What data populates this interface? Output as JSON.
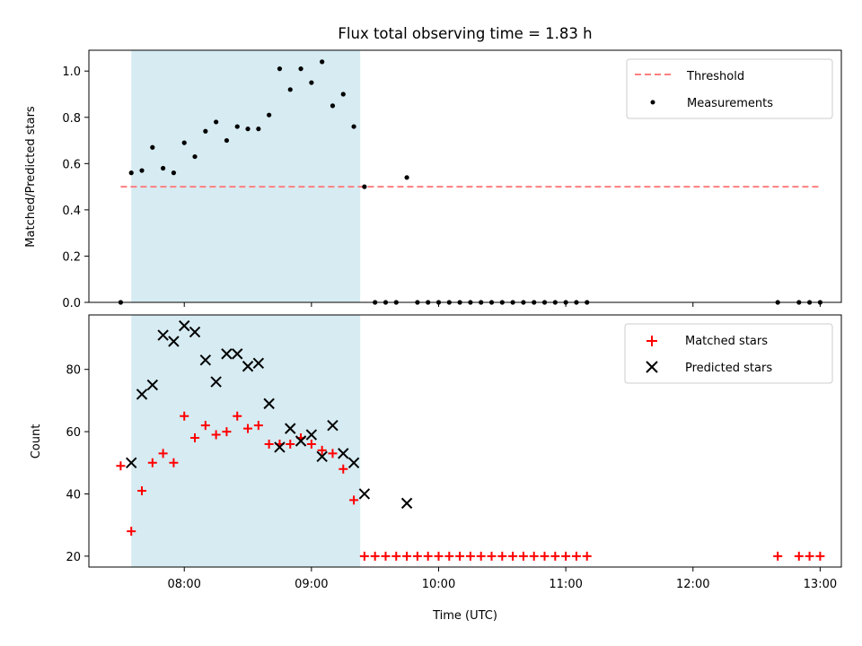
{
  "chart_data": {
    "title": "Flux total observing time = 1.83 h",
    "shaded_interval": {
      "start": "07:35",
      "end": "09:23",
      "color": "#add8e6"
    },
    "xlabel": "Time (UTC)",
    "x_ticks": [
      "08:00",
      "09:00",
      "10:00",
      "11:00",
      "12:00",
      "13:00"
    ],
    "x_range": [
      "07:15",
      "13:10"
    ],
    "panels": [
      {
        "type": "scatter",
        "ylabel": "Matched/Predicted stars",
        "ylim": [
          0,
          1.09
        ],
        "y_ticks": [
          "0.0",
          "0.2",
          "0.4",
          "0.6",
          "0.8",
          "1.0"
        ],
        "legend_position": "upper right",
        "series": [
          {
            "name": "Threshold",
            "kind": "dashed-line",
            "color": "#ff7f7f",
            "points": [
              {
                "t": "07:30",
                "y": 0.5
              },
              {
                "t": "13:00",
                "y": 0.5
              }
            ]
          },
          {
            "name": "Measurements",
            "kind": "dots",
            "color": "#000000",
            "points": [
              {
                "t": "07:30",
                "y": 0.0
              },
              {
                "t": "07:35",
                "y": 0.56
              },
              {
                "t": "07:40",
                "y": 0.57
              },
              {
                "t": "07:45",
                "y": 0.67
              },
              {
                "t": "07:50",
                "y": 0.58
              },
              {
                "t": "07:55",
                "y": 0.56
              },
              {
                "t": "08:00",
                "y": 0.69
              },
              {
                "t": "08:05",
                "y": 0.63
              },
              {
                "t": "08:10",
                "y": 0.74
              },
              {
                "t": "08:15",
                "y": 0.78
              },
              {
                "t": "08:20",
                "y": 0.7
              },
              {
                "t": "08:25",
                "y": 0.76
              },
              {
                "t": "08:30",
                "y": 0.75
              },
              {
                "t": "08:35",
                "y": 0.75
              },
              {
                "t": "08:40",
                "y": 0.81
              },
              {
                "t": "08:45",
                "y": 1.01
              },
              {
                "t": "08:50",
                "y": 0.92
              },
              {
                "t": "08:55",
                "y": 1.01
              },
              {
                "t": "09:00",
                "y": 0.95
              },
              {
                "t": "09:05",
                "y": 1.04
              },
              {
                "t": "09:10",
                "y": 0.85
              },
              {
                "t": "09:15",
                "y": 0.9
              },
              {
                "t": "09:20",
                "y": 0.76
              },
              {
                "t": "09:25",
                "y": 0.5
              },
              {
                "t": "09:30",
                "y": 0.0
              },
              {
                "t": "09:35",
                "y": 0.0
              },
              {
                "t": "09:40",
                "y": 0.0
              },
              {
                "t": "09:45",
                "y": 0.54
              },
              {
                "t": "09:50",
                "y": 0.0
              },
              {
                "t": "09:55",
                "y": 0.0
              },
              {
                "t": "10:00",
                "y": 0.0
              },
              {
                "t": "10:05",
                "y": 0.0
              },
              {
                "t": "10:10",
                "y": 0.0
              },
              {
                "t": "10:15",
                "y": 0.0
              },
              {
                "t": "10:20",
                "y": 0.0
              },
              {
                "t": "10:25",
                "y": 0.0
              },
              {
                "t": "10:30",
                "y": 0.0
              },
              {
                "t": "10:35",
                "y": 0.0
              },
              {
                "t": "10:40",
                "y": 0.0
              },
              {
                "t": "10:45",
                "y": 0.0
              },
              {
                "t": "10:50",
                "y": 0.0
              },
              {
                "t": "10:55",
                "y": 0.0
              },
              {
                "t": "11:00",
                "y": 0.0
              },
              {
                "t": "11:05",
                "y": 0.0
              },
              {
                "t": "11:10",
                "y": 0.0
              },
              {
                "t": "12:40",
                "y": 0.0
              },
              {
                "t": "12:50",
                "y": 0.0
              },
              {
                "t": "12:55",
                "y": 0.0
              },
              {
                "t": "13:00",
                "y": 0.0
              }
            ]
          }
        ]
      },
      {
        "type": "scatter",
        "ylabel": "Count",
        "ylim": [
          16.5,
          97.5
        ],
        "y_ticks": [
          "20",
          "40",
          "60",
          "80"
        ],
        "legend_position": "upper right",
        "series": [
          {
            "name": "Matched stars",
            "kind": "plus",
            "color": "#ff0000",
            "points": [
              {
                "t": "07:30",
                "y": 49
              },
              {
                "t": "07:35",
                "y": 28
              },
              {
                "t": "07:40",
                "y": 41
              },
              {
                "t": "07:45",
                "y": 50
              },
              {
                "t": "07:50",
                "y": 53
              },
              {
                "t": "07:55",
                "y": 50
              },
              {
                "t": "08:00",
                "y": 65
              },
              {
                "t": "08:05",
                "y": 58
              },
              {
                "t": "08:10",
                "y": 62
              },
              {
                "t": "08:15",
                "y": 59
              },
              {
                "t": "08:20",
                "y": 60
              },
              {
                "t": "08:25",
                "y": 65
              },
              {
                "t": "08:30",
                "y": 61
              },
              {
                "t": "08:35",
                "y": 62
              },
              {
                "t": "08:40",
                "y": 56
              },
              {
                "t": "08:45",
                "y": 56
              },
              {
                "t": "08:50",
                "y": 56
              },
              {
                "t": "08:55",
                "y": 58
              },
              {
                "t": "09:00",
                "y": 56
              },
              {
                "t": "09:05",
                "y": 54
              },
              {
                "t": "09:10",
                "y": 53
              },
              {
                "t": "09:15",
                "y": 48
              },
              {
                "t": "09:20",
                "y": 38
              },
              {
                "t": "09:25",
                "y": 20
              },
              {
                "t": "09:30",
                "y": 20
              },
              {
                "t": "09:35",
                "y": 20
              },
              {
                "t": "09:40",
                "y": 20
              },
              {
                "t": "09:45",
                "y": 20
              },
              {
                "t": "09:50",
                "y": 20
              },
              {
                "t": "09:55",
                "y": 20
              },
              {
                "t": "10:00",
                "y": 20
              },
              {
                "t": "10:05",
                "y": 20
              },
              {
                "t": "10:10",
                "y": 20
              },
              {
                "t": "10:15",
                "y": 20
              },
              {
                "t": "10:20",
                "y": 20
              },
              {
                "t": "10:25",
                "y": 20
              },
              {
                "t": "10:30",
                "y": 20
              },
              {
                "t": "10:35",
                "y": 20
              },
              {
                "t": "10:40",
                "y": 20
              },
              {
                "t": "10:45",
                "y": 20
              },
              {
                "t": "10:50",
                "y": 20
              },
              {
                "t": "10:55",
                "y": 20
              },
              {
                "t": "11:00",
                "y": 20
              },
              {
                "t": "11:05",
                "y": 20
              },
              {
                "t": "11:10",
                "y": 20
              },
              {
                "t": "12:40",
                "y": 20
              },
              {
                "t": "12:50",
                "y": 20
              },
              {
                "t": "12:55",
                "y": 20
              },
              {
                "t": "13:00",
                "y": 20
              }
            ]
          },
          {
            "name": "Predicted stars",
            "kind": "x",
            "color": "#000000",
            "points": [
              {
                "t": "07:35",
                "y": 50
              },
              {
                "t": "07:40",
                "y": 72
              },
              {
                "t": "07:45",
                "y": 75
              },
              {
                "t": "07:50",
                "y": 91
              },
              {
                "t": "07:55",
                "y": 89
              },
              {
                "t": "08:00",
                "y": 94
              },
              {
                "t": "08:05",
                "y": 92
              },
              {
                "t": "08:10",
                "y": 83
              },
              {
                "t": "08:15",
                "y": 76
              },
              {
                "t": "08:20",
                "y": 85
              },
              {
                "t": "08:25",
                "y": 85
              },
              {
                "t": "08:30",
                "y": 81
              },
              {
                "t": "08:35",
                "y": 82
              },
              {
                "t": "08:40",
                "y": 69
              },
              {
                "t": "08:45",
                "y": 55
              },
              {
                "t": "08:50",
                "y": 61
              },
              {
                "t": "08:55",
                "y": 57
              },
              {
                "t": "09:00",
                "y": 59
              },
              {
                "t": "09:05",
                "y": 52
              },
              {
                "t": "09:10",
                "y": 62
              },
              {
                "t": "09:15",
                "y": 53
              },
              {
                "t": "09:20",
                "y": 50
              },
              {
                "t": "09:25",
                "y": 40
              },
              {
                "t": "09:45",
                "y": 37
              }
            ]
          }
        ]
      }
    ]
  }
}
